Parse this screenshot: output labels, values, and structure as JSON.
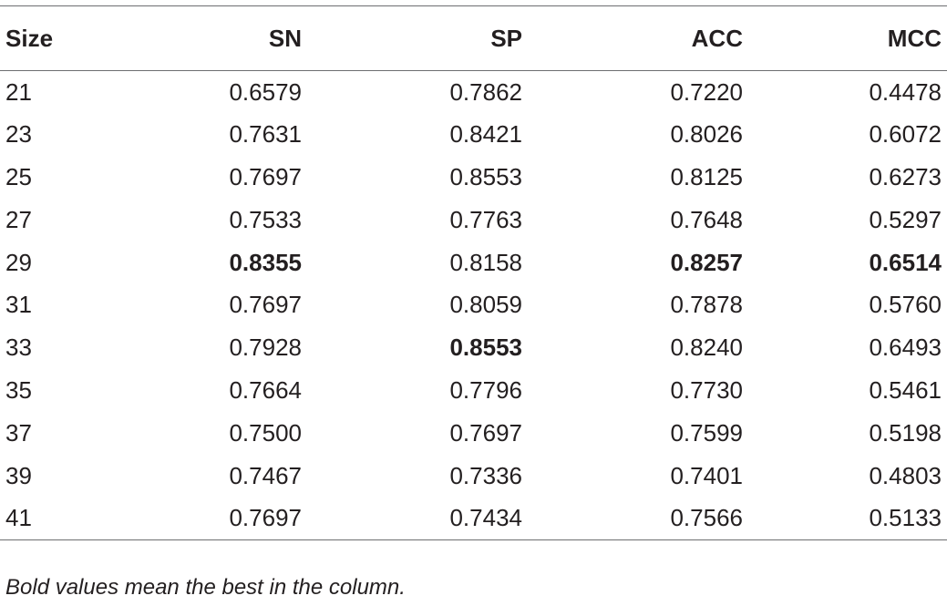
{
  "table": {
    "headers": [
      "Size",
      "SN",
      "SP",
      "ACC",
      "MCC"
    ],
    "rows": [
      [
        "21",
        "0.6579",
        "0.7862",
        "0.7220",
        "0.4478"
      ],
      [
        "23",
        "0.7631",
        "0.8421",
        "0.8026",
        "0.6072"
      ],
      [
        "25",
        "0.7697",
        "0.8553",
        "0.8125",
        "0.6273"
      ],
      [
        "27",
        "0.7533",
        "0.7763",
        "0.7648",
        "0.5297"
      ],
      [
        "29",
        "0.8355",
        "0.8158",
        "0.8257",
        "0.6514"
      ],
      [
        "31",
        "0.7697",
        "0.8059",
        "0.7878",
        "0.5760"
      ],
      [
        "33",
        "0.7928",
        "0.8553",
        "0.8240",
        "0.6493"
      ],
      [
        "35",
        "0.7664",
        "0.7796",
        "0.7730",
        "0.5461"
      ],
      [
        "37",
        "0.7500",
        "0.7697",
        "0.7599",
        "0.5198"
      ],
      [
        "39",
        "0.7467",
        "0.7336",
        "0.7401",
        "0.4803"
      ],
      [
        "41",
        "0.7697",
        "0.7434",
        "0.7566",
        "0.5133"
      ]
    ],
    "bold_cells": [
      [
        4,
        1
      ],
      [
        4,
        3
      ],
      [
        4,
        4
      ],
      [
        6,
        2
      ]
    ]
  },
  "footnote": "Bold values mean the best in the column.",
  "colors": {
    "text": "#231f20",
    "rule": "#6d6e71"
  }
}
